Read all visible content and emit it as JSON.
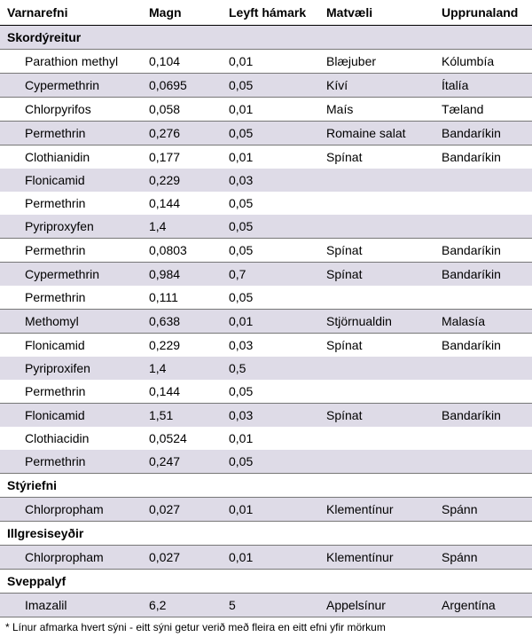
{
  "columns": {
    "c0": "Varnarefni",
    "c1": "Magn",
    "c2": "Leyft hámark",
    "c3": "Matvæli",
    "c4": "Upprunaland"
  },
  "colors": {
    "row_even": "#ffffff",
    "row_odd": "#dedbe7",
    "header_border": "#000000",
    "row_border": "#777777",
    "text": "#000000"
  },
  "footnote": "* Línur afmarka hvert sýni - eitt sýni getur verið með fleira en eitt efni yfir mörkum",
  "sections": [
    {
      "title": "Skordýreitur",
      "rows": [
        {
          "name": "Parathion methyl",
          "amount": "0,104",
          "limit": "0,01",
          "food": "Blæjuber",
          "origin": "Kólumbía",
          "sep": true
        },
        {
          "name": "Cypermethrin",
          "amount": "0,0695",
          "limit": "0,05",
          "food": "Kíví",
          "origin": "Ítalía",
          "sep": true
        },
        {
          "name": "Chlorpyrifos",
          "amount": "0,058",
          "limit": "0,01",
          "food": "Maís",
          "origin": "Tæland",
          "sep": true
        },
        {
          "name": "Permethrin",
          "amount": "0,276",
          "limit": "0,05",
          "food": "Romaine salat",
          "origin": "Bandaríkin",
          "sep": true
        },
        {
          "name": "Clothianidin",
          "amount": "0,177",
          "limit": "0,01",
          "food": "Spínat",
          "origin": "Bandaríkin",
          "sep": false
        },
        {
          "name": "Flonicamid",
          "amount": "0,229",
          "limit": "0,03",
          "food": "",
          "origin": "",
          "sep": false
        },
        {
          "name": "Permethrin",
          "amount": "0,144",
          "limit": "0,05",
          "food": "",
          "origin": "",
          "sep": false
        },
        {
          "name": "Pyriproxyfen",
          "amount": "1,4",
          "limit": "0,05",
          "food": "",
          "origin": "",
          "sep": true
        },
        {
          "name": "Permethrin",
          "amount": "0,0803",
          "limit": "0,05",
          "food": "Spínat",
          "origin": "Bandaríkin",
          "sep": true
        },
        {
          "name": "Cypermethrin",
          "amount": "0,984",
          "limit": "0,7",
          "food": "Spínat",
          "origin": "Bandaríkin",
          "sep": false
        },
        {
          "name": "Permethrin",
          "amount": "0,111",
          "limit": "0,05",
          "food": "",
          "origin": "",
          "sep": true
        },
        {
          "name": "Methomyl",
          "amount": "0,638",
          "limit": "0,01",
          "food": "Stjörnualdin",
          "origin": "Malasía",
          "sep": true
        },
        {
          "name": "Flonicamid",
          "amount": "0,229",
          "limit": "0,03",
          "food": "Spínat",
          "origin": "Bandaríkin",
          "sep": false
        },
        {
          "name": "Pyriproxifen",
          "amount": "1,4",
          "limit": "0,5",
          "food": "",
          "origin": "",
          "sep": false
        },
        {
          "name": "Permethrin",
          "amount": "0,144",
          "limit": "0,05",
          "food": "",
          "origin": "",
          "sep": true
        },
        {
          "name": "Flonicamid",
          "amount": "1,51",
          "limit": "0,03",
          "food": "Spínat",
          "origin": "Bandaríkin",
          "sep": false
        },
        {
          "name": "Clothiacidin",
          "amount": "0,0524",
          "limit": "0,01",
          "food": "",
          "origin": "",
          "sep": false
        },
        {
          "name": "Permethrin",
          "amount": "0,247",
          "limit": "0,05",
          "food": "",
          "origin": "",
          "sep": true
        }
      ]
    },
    {
      "title": "Stýriefni",
      "rows": [
        {
          "name": "Chlorpropham",
          "amount": "0,027",
          "limit": "0,01",
          "food": "Klementínur",
          "origin": "Spánn",
          "sep": true
        }
      ]
    },
    {
      "title": "Illgresiseyðir",
      "rows": [
        {
          "name": "Chlorpropham",
          "amount": "0,027",
          "limit": "0,01",
          "food": "Klementínur",
          "origin": "Spánn",
          "sep": true
        }
      ]
    },
    {
      "title": "Sveppalyf",
      "rows": [
        {
          "name": "Imazalil",
          "amount": "6,2",
          "limit": "5",
          "food": "Appelsínur",
          "origin": "Argentína",
          "sep": true
        }
      ]
    }
  ]
}
